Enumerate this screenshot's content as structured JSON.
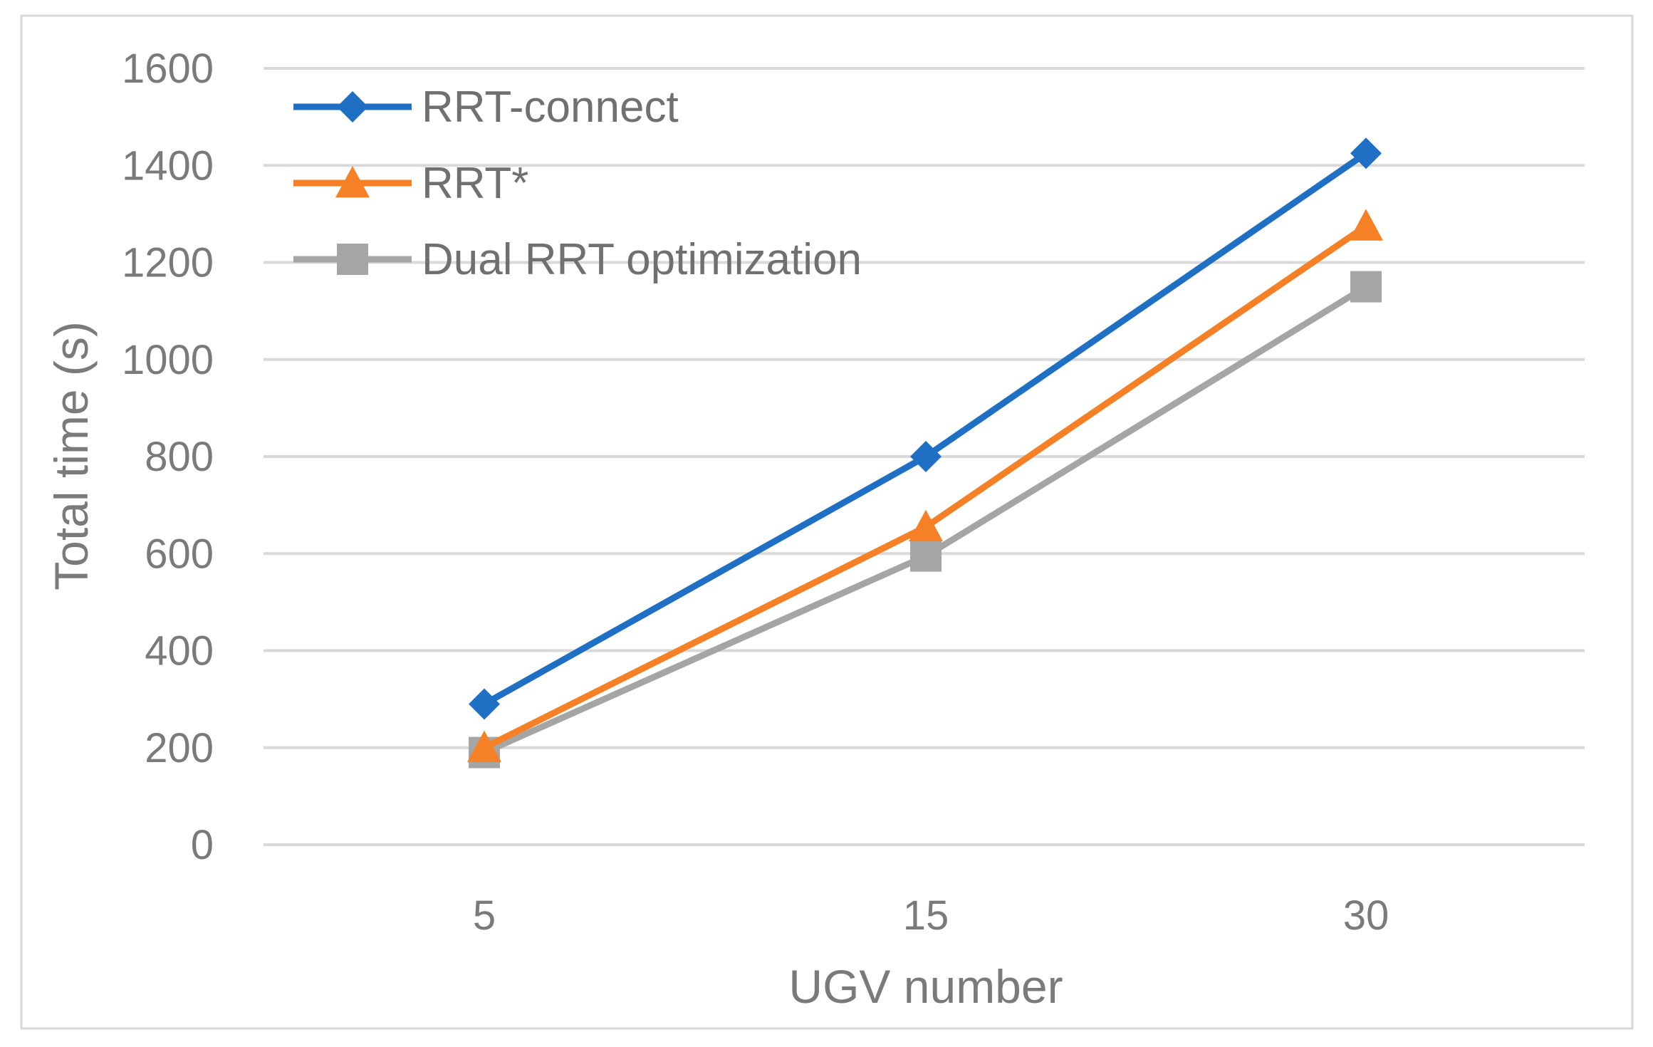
{
  "chart_data": {
    "type": "line",
    "categories": [
      "5",
      "15",
      "30"
    ],
    "xlabel": "UGV number",
    "ylabel": "Total time (s)",
    "ylim": [
      0,
      1600
    ],
    "yticks": [
      "0",
      "200",
      "400",
      "600",
      "800",
      "1000",
      "1200",
      "1400",
      "1600"
    ],
    "grid": true,
    "legend": "top-left",
    "series": [
      {
        "name": "RRT-connect",
        "values": [
          290,
          800,
          1425
        ],
        "color": "#1f6fc5",
        "marker": "diamond-icon"
      },
      {
        "name": "RRT*",
        "values": [
          200,
          655,
          1275
        ],
        "color": "#f58025",
        "marker": "triangle-icon"
      },
      {
        "name": "Dual RRT optimization",
        "values": [
          190,
          595,
          1150
        ],
        "color": "#a5a5a5",
        "marker": "square-icon"
      }
    ]
  }
}
